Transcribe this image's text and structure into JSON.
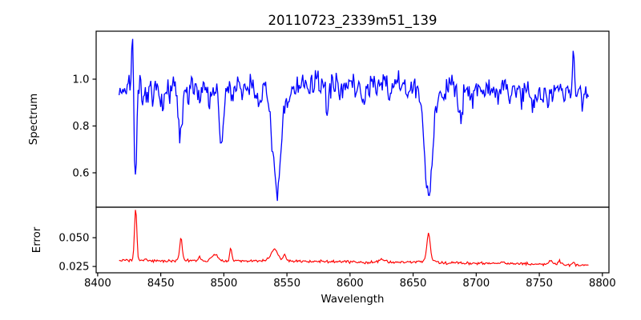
{
  "figure_title": "20110723_2339m51_139",
  "chart_data": [
    {
      "type": "line",
      "panel": "spectrum",
      "title": "20110723_2339m51_139",
      "ylabel": "Spectrum",
      "line_color": "#0000ff",
      "grid": false,
      "legend": null,
      "xlim": [
        8398.8,
        8805.2
      ],
      "ylim": [
        0.453,
        1.205
      ],
      "yticks": [
        1.0,
        0.8,
        0.6
      ],
      "ytick_labels": [
        "1.0",
        "0.8",
        "0.6"
      ],
      "x_start": 8417,
      "x_end": 8789,
      "n_points": 520,
      "noise_sigma": 0.026,
      "seed": 7,
      "continuum": [
        [
          8417,
          0.955
        ],
        [
          8425,
          0.965
        ],
        [
          8435,
          0.96
        ],
        [
          8450,
          0.965
        ],
        [
          8475,
          0.965
        ],
        [
          8490,
          0.97
        ],
        [
          8520,
          0.975
        ],
        [
          8530,
          0.97
        ],
        [
          8560,
          0.98
        ],
        [
          8590,
          0.985
        ],
        [
          8620,
          0.98
        ],
        [
          8650,
          0.975
        ],
        [
          8680,
          0.97
        ],
        [
          8710,
          0.965
        ],
        [
          8740,
          0.96
        ],
        [
          8765,
          0.955
        ],
        [
          8780,
          0.95
        ],
        [
          8789,
          0.925
        ]
      ],
      "features": [
        [
          8427.6,
          0.8,
          0.25
        ],
        [
          8429.9,
          1.1,
          -0.37
        ],
        [
          8436,
          1.0,
          -0.08
        ],
        [
          8440,
          0.8,
          -0.05
        ],
        [
          8444,
          0.9,
          -0.07
        ],
        [
          8452,
          1.2,
          -0.09
        ],
        [
          8457,
          0.8,
          -0.05
        ],
        [
          8465.6,
          1.6,
          -0.23
        ],
        [
          8472,
          0.9,
          -0.06
        ],
        [
          8481,
          0.8,
          -0.05
        ],
        [
          8489,
          0.9,
          -0.07
        ],
        [
          8498.0,
          1.5,
          -0.22
        ],
        [
          8498.0,
          4.0,
          -0.04
        ],
        [
          8507,
          0.8,
          -0.05
        ],
        [
          8514,
          0.9,
          -0.07
        ],
        [
          8527,
          1.2,
          -0.06
        ],
        [
          8542.1,
          3.0,
          -0.42
        ],
        [
          8542.1,
          8.0,
          -0.06
        ],
        [
          8551,
          0.8,
          -0.05
        ],
        [
          8567,
          0.8,
          -0.05
        ],
        [
          8582,
          1.4,
          -0.1
        ],
        [
          8591,
          0.8,
          -0.04
        ],
        [
          8598,
          0.9,
          -0.05
        ],
        [
          8605,
          0.8,
          -0.05
        ],
        [
          8611,
          1.3,
          -0.09
        ],
        [
          8621,
          0.9,
          -0.06
        ],
        [
          8631,
          0.8,
          -0.05
        ],
        [
          8645,
          0.8,
          -0.04
        ],
        [
          8662.1,
          3.0,
          -0.42
        ],
        [
          8662.1,
          8.0,
          -0.05
        ],
        [
          8674,
          0.9,
          -0.06
        ],
        [
          8688,
          1.6,
          -0.12
        ],
        [
          8697,
          0.8,
          -0.05
        ],
        [
          8705,
          0.8,
          -0.04
        ],
        [
          8717,
          0.9,
          -0.06
        ],
        [
          8727,
          0.8,
          -0.05
        ],
        [
          8736,
          0.8,
          -0.05
        ],
        [
          8744,
          0.8,
          -0.04
        ],
        [
          8750,
          5.0,
          -0.03
        ],
        [
          8757,
          0.8,
          -0.04
        ],
        [
          8770,
          0.8,
          -0.05
        ],
        [
          8777,
          0.7,
          0.17
        ],
        [
          8784,
          0.9,
          -0.05
        ]
      ]
    },
    {
      "type": "line",
      "panel": "error",
      "ylabel": "Error",
      "xlabel": "Wavelength",
      "line_color": "#ff0000",
      "grid": false,
      "legend": null,
      "xlim": [
        8398.8,
        8805.2
      ],
      "ylim": [
        0.0195,
        0.0765
      ],
      "yticks": [
        0.05,
        0.025
      ],
      "ytick_labels": [
        "0.050",
        "0.025"
      ],
      "xticks": [
        8400,
        8450,
        8500,
        8550,
        8600,
        8650,
        8700,
        8750,
        8800
      ],
      "xtick_labels": [
        "8400",
        "8450",
        "8500",
        "8550",
        "8600",
        "8650",
        "8700",
        "8750",
        "8800"
      ],
      "x_start": 8417,
      "x_end": 8789,
      "n_points": 520,
      "noise_sigma": 0.0006,
      "seed": 3,
      "continuum": [
        [
          8417,
          0.0305
        ],
        [
          8450,
          0.03
        ],
        [
          8500,
          0.03
        ],
        [
          8550,
          0.0297
        ],
        [
          8600,
          0.029
        ],
        [
          8650,
          0.0285
        ],
        [
          8700,
          0.0278
        ],
        [
          8740,
          0.0272
        ],
        [
          8770,
          0.0266
        ],
        [
          8789,
          0.0258
        ]
      ],
      "features": [
        [
          8430.1,
          0.9,
          0.0445
        ],
        [
          8466.0,
          1.0,
          0.02
        ],
        [
          8481,
          1.0,
          0.0025
        ],
        [
          8493,
          2.2,
          0.0055
        ],
        [
          8505.5,
          0.8,
          0.0125
        ],
        [
          8540,
          3.0,
          0.0095
        ],
        [
          8548,
          0.9,
          0.006
        ],
        [
          8625,
          2.0,
          0.0028
        ],
        [
          8662.2,
          1.3,
          0.0225
        ],
        [
          8662.2,
          4.0,
          0.003
        ],
        [
          8721,
          1.0,
          0.0022
        ],
        [
          8759,
          1.5,
          0.0035
        ],
        [
          8766,
          1.2,
          0.003
        ],
        [
          8777,
          0.8,
          0.0028
        ]
      ]
    }
  ]
}
